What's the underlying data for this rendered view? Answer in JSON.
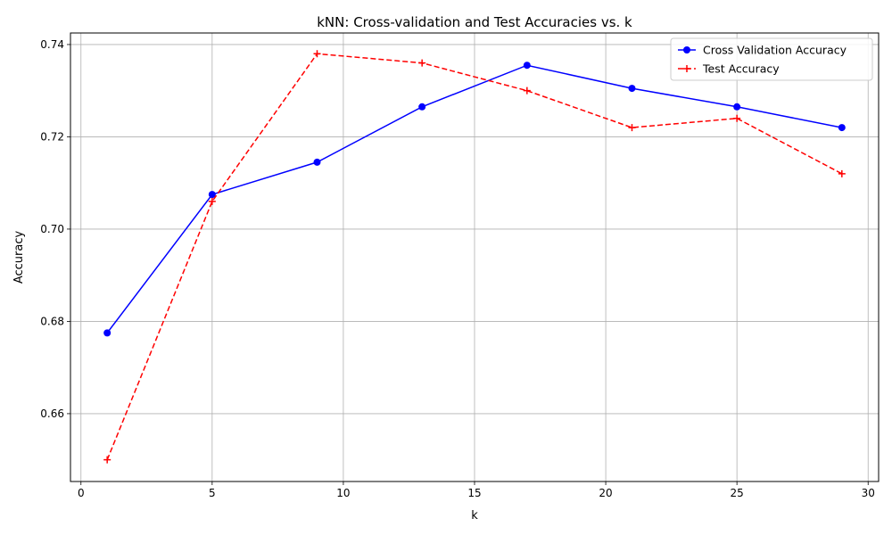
{
  "chart_data": {
    "type": "line",
    "title": "kNN: Cross-validation and Test Accuracies vs. k",
    "xlabel": "k",
    "ylabel": "Accuracy",
    "xlim": [
      -0.4,
      30.4
    ],
    "ylim": [
      0.6453,
      0.7425
    ],
    "x_ticks": [
      0,
      5,
      10,
      15,
      20,
      25,
      30
    ],
    "y_ticks": [
      0.66,
      0.68,
      0.7,
      0.72,
      0.74
    ],
    "grid": true,
    "legend_position": "top-right",
    "x": [
      1,
      5,
      9,
      13,
      17,
      21,
      25,
      29
    ],
    "series": [
      {
        "name": "Cross Validation Accuracy",
        "values": [
          0.6775,
          0.7075,
          0.7145,
          0.7265,
          0.7355,
          0.7305,
          0.7265,
          0.722
        ],
        "color": "#0000ff",
        "line_style": "solid",
        "marker": "circle"
      },
      {
        "name": "Test Accuracy",
        "values": [
          0.65,
          0.706,
          0.738,
          0.736,
          0.73,
          0.722,
          0.724,
          0.712
        ],
        "color": "#ff0000",
        "line_style": "dashed",
        "marker": "plus"
      }
    ]
  }
}
